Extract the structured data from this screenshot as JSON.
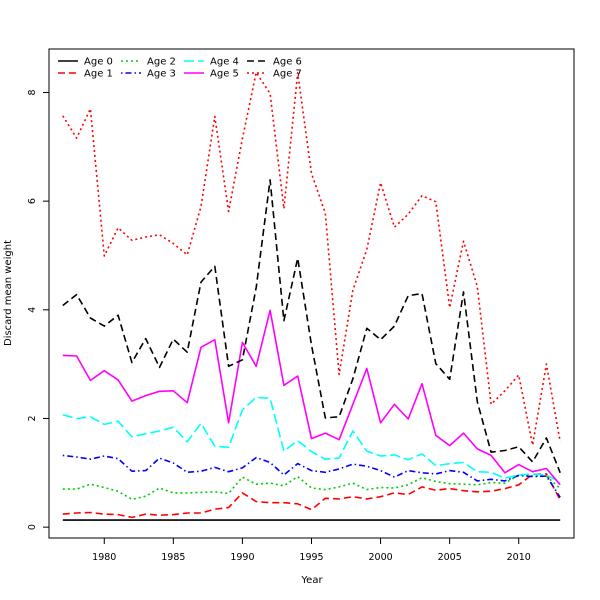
{
  "chart_data": {
    "type": "line",
    "title": "",
    "xlabel": "Year",
    "ylabel": "Discard mean weight",
    "xlim": [
      1976,
      2014
    ],
    "ylim": [
      -0.2,
      8.8
    ],
    "xticks": [
      1980,
      1985,
      1990,
      1995,
      2000,
      2005,
      2010
    ],
    "yticks": [
      0,
      2,
      4,
      6,
      8
    ],
    "x": [
      1977,
      1978,
      1979,
      1980,
      1981,
      1982,
      1983,
      1984,
      1985,
      1986,
      1987,
      1988,
      1989,
      1990,
      1991,
      1992,
      1993,
      1994,
      1995,
      1996,
      1997,
      1998,
      1999,
      2000,
      2001,
      2002,
      2003,
      2004,
      2005,
      2006,
      2007,
      2008,
      2009,
      2010,
      2011,
      2012,
      2013
    ],
    "legend": {
      "position": "top-left",
      "columns": 4
    },
    "series": [
      {
        "name": "Age 0",
        "color": "#000000",
        "dash": "solid",
        "values": [
          0.13,
          0.13,
          0.13,
          0.13,
          0.13,
          0.13,
          0.13,
          0.13,
          0.13,
          0.13,
          0.13,
          0.13,
          0.13,
          0.13,
          0.13,
          0.13,
          0.13,
          0.13,
          0.13,
          0.13,
          0.13,
          0.13,
          0.13,
          0.13,
          0.13,
          0.13,
          0.13,
          0.13,
          0.13,
          0.13,
          0.13,
          0.13,
          0.13,
          0.13,
          0.13,
          0.13,
          0.13
        ]
      },
      {
        "name": "Age 1",
        "color": "#ff0000",
        "dash": "dashed",
        "values": [
          0.24,
          0.26,
          0.27,
          0.24,
          0.23,
          0.18,
          0.24,
          0.22,
          0.23,
          0.26,
          0.26,
          0.33,
          0.36,
          0.63,
          0.47,
          0.45,
          0.45,
          0.43,
          0.32,
          0.53,
          0.52,
          0.56,
          0.52,
          0.56,
          0.63,
          0.6,
          0.74,
          0.68,
          0.71,
          0.67,
          0.65,
          0.66,
          0.71,
          0.78,
          0.97,
          0.98,
          0.5
        ]
      },
      {
        "name": "Age 2",
        "color": "#00cc00",
        "dash": "dotted",
        "values": [
          0.7,
          0.7,
          0.79,
          0.73,
          0.66,
          0.51,
          0.57,
          0.72,
          0.63,
          0.63,
          0.64,
          0.65,
          0.62,
          0.92,
          0.79,
          0.81,
          0.76,
          0.93,
          0.72,
          0.69,
          0.74,
          0.81,
          0.69,
          0.73,
          0.72,
          0.78,
          0.91,
          0.84,
          0.8,
          0.79,
          0.78,
          0.82,
          0.81,
          0.96,
          0.94,
          0.94,
          0.71
        ]
      },
      {
        "name": "Age 3",
        "color": "#0000ff",
        "dash": "dashdot",
        "values": [
          1.32,
          1.29,
          1.25,
          1.31,
          1.26,
          1.03,
          1.04,
          1.27,
          1.18,
          1.01,
          1.03,
          1.1,
          1.02,
          1.09,
          1.28,
          1.19,
          0.96,
          1.17,
          1.04,
          1.01,
          1.07,
          1.16,
          1.12,
          1.04,
          0.92,
          1.04,
          1.0,
          0.98,
          1.04,
          1.01,
          0.85,
          0.88,
          0.85,
          0.95,
          0.93,
          0.94,
          0.55
        ]
      },
      {
        "name": "Age 4",
        "color": "#00ffff",
        "dash": "longdash",
        "values": [
          2.07,
          2.0,
          2.03,
          1.89,
          1.95,
          1.66,
          1.72,
          1.77,
          1.84,
          1.57,
          1.91,
          1.49,
          1.47,
          2.16,
          2.39,
          2.37,
          1.4,
          1.59,
          1.39,
          1.25,
          1.27,
          1.77,
          1.4,
          1.31,
          1.33,
          1.24,
          1.35,
          1.13,
          1.17,
          1.19,
          1.02,
          1.01,
          0.9,
          0.96,
          0.98,
          0.96,
          0.83
        ]
      },
      {
        "name": "Age 5",
        "color": "#ff00ff",
        "dash": "solid",
        "values": [
          3.16,
          3.15,
          2.7,
          2.88,
          2.71,
          2.32,
          2.42,
          2.5,
          2.51,
          2.29,
          3.31,
          3.45,
          1.92,
          3.4,
          2.96,
          3.99,
          2.61,
          2.78,
          1.63,
          1.73,
          1.61,
          2.26,
          2.92,
          1.92,
          2.26,
          1.99,
          2.64,
          1.69,
          1.5,
          1.73,
          1.44,
          1.32,
          1.0,
          1.15,
          1.02,
          1.08,
          0.78
        ]
      },
      {
        "name": "Age 6",
        "color": "#000000",
        "dash": "dashed",
        "values": [
          4.08,
          4.28,
          3.85,
          3.7,
          3.9,
          3.03,
          3.47,
          2.94,
          3.46,
          3.22,
          4.51,
          4.8,
          2.96,
          3.08,
          4.41,
          6.39,
          3.8,
          4.95,
          3.35,
          2.01,
          2.03,
          2.73,
          3.66,
          3.45,
          3.7,
          4.26,
          4.3,
          3.01,
          2.72,
          4.33,
          2.31,
          1.38,
          1.41,
          1.48,
          1.2,
          1.64,
          1.0
        ]
      },
      {
        "name": "Age 7",
        "color": "#ff0000",
        "dash": "dotted",
        "values": [
          7.57,
          7.16,
          7.7,
          4.99,
          5.51,
          5.28,
          5.34,
          5.38,
          5.22,
          5.01,
          5.9,
          7.56,
          5.81,
          7.15,
          8.37,
          7.98,
          5.86,
          8.36,
          6.51,
          5.78,
          2.81,
          4.36,
          5.11,
          6.34,
          5.52,
          5.76,
          6.1,
          5.99,
          4.04,
          5.26,
          4.43,
          2.26,
          2.51,
          2.8,
          1.51,
          3.0,
          1.57
        ]
      }
    ]
  }
}
